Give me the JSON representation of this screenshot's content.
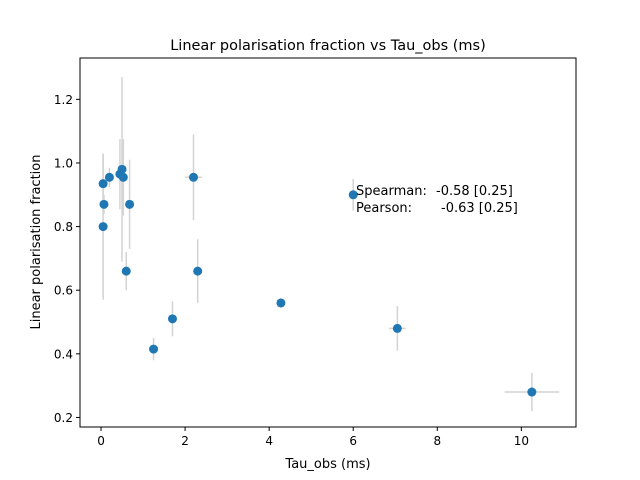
{
  "chart_data": {
    "type": "scatter",
    "title": "Linear polarisation fraction vs Tau_obs (ms)",
    "xlabel": "Tau_obs (ms)",
    "ylabel": "Linear polarisation fraction",
    "xlim": [
      -0.5,
      11.3
    ],
    "ylim": [
      0.17,
      1.33
    ],
    "xticks": [
      0,
      2,
      4,
      6,
      8,
      10
    ],
    "yticks": [
      0.2,
      0.4,
      0.6,
      0.8,
      1.0,
      1.2
    ],
    "xtick_labels": [
      "0",
      "2",
      "4",
      "6",
      "8",
      "10"
    ],
    "ytick_labels": [
      "0.2",
      "0.4",
      "0.6",
      "0.8",
      "1.0",
      "1.2"
    ],
    "grid": false,
    "marker_color": "#1f77b4",
    "errorbar_color": "#d3d3d3",
    "points": [
      {
        "x": 0.05,
        "y": 0.935,
        "yerr": 0.09,
        "xerr": 0.03
      },
      {
        "x": 0.05,
        "y": 0.8,
        "yerr": 0.23,
        "xerr": 0.03
      },
      {
        "x": 0.07,
        "y": 0.87,
        "yerr": 0.03,
        "xerr": 0.03
      },
      {
        "x": 0.2,
        "y": 0.955,
        "yerr": 0.03,
        "xerr": 0.05
      },
      {
        "x": 0.45,
        "y": 0.965,
        "yerr": 0.11,
        "xerr": 0.05
      },
      {
        "x": 0.5,
        "y": 0.98,
        "yerr": 0.29,
        "xerr": 0.05
      },
      {
        "x": 0.53,
        "y": 0.955,
        "yerr": 0.12,
        "xerr": 0.05
      },
      {
        "x": 0.6,
        "y": 0.66,
        "yerr": 0.06,
        "xerr": 0.05
      },
      {
        "x": 0.68,
        "y": 0.87,
        "yerr": 0.14,
        "xerr": 0.05
      },
      {
        "x": 1.25,
        "y": 0.415,
        "yerr": 0.035,
        "xerr": 0.05
      },
      {
        "x": 1.7,
        "y": 0.51,
        "yerr": 0.055,
        "xerr": 0.05
      },
      {
        "x": 2.2,
        "y": 0.955,
        "yerr": 0.135,
        "xerr": 0.2
      },
      {
        "x": 2.3,
        "y": 0.66,
        "yerr": 0.1,
        "xerr": 0.07
      },
      {
        "x": 4.28,
        "y": 0.56,
        "yerr": 0.015,
        "xerr": 0.05
      },
      {
        "x": 6.0,
        "y": 0.9,
        "yerr": 0.05,
        "xerr": 0.05
      },
      {
        "x": 7.05,
        "y": 0.48,
        "yerr": 0.07,
        "xerr": 0.2
      },
      {
        "x": 10.25,
        "y": 0.28,
        "yerr": 0.06,
        "xerr": 0.65
      }
    ],
    "annotations": [
      {
        "label": "Spearman:",
        "value": "-0.58 [0.25]"
      },
      {
        "label": "Pearson:",
        "value": "-0.63 [0.25]"
      }
    ]
  }
}
